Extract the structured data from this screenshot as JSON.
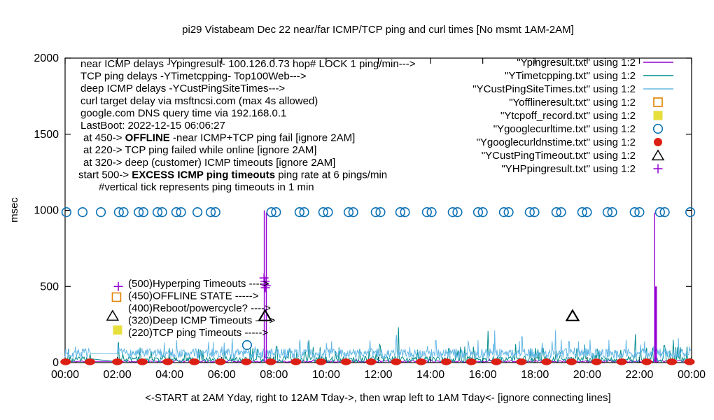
{
  "chart_data": {
    "type": "line",
    "title": "pi29 Vistabeam Dec 22  near/far ICMP/TCP ping and curl times [No msmt 1AM-2AM]",
    "ylabel": "msec",
    "xlabel_caption": "<-START at 2AM Yday, right to 12AM Tday->, then wrap left to 1AM Tday<- [ignore connecting lines]",
    "x_ticks": [
      "00:00",
      "02:00",
      "04:00",
      "06:00",
      "08:00",
      "10:00",
      "12:00",
      "14:00",
      "16:00",
      "18:00",
      "20:00",
      "22:00",
      "00:00"
    ],
    "y_ticks": [
      0,
      500,
      1000,
      1500,
      2000
    ],
    "ylim": [
      0,
      2000
    ],
    "xlim_hours": [
      0,
      24
    ],
    "gap_note": "no measurements between 01:00 and 02:00, straight connecting lines drawn across the gap",
    "grid": false,
    "legend_position": "top-right",
    "info_lines": [
      {
        "indent": 0,
        "parts": [
          {
            "t": "near ICMP delays -Ypingresult- 100.126.0.73 hop# LOCK 1 ping/min--->",
            "b": false
          }
        ]
      },
      {
        "indent": 0,
        "parts": [
          {
            "t": "TCP ping delays -YTimetcpping- Top100Web--->",
            "b": false
          }
        ]
      },
      {
        "indent": 0,
        "parts": [
          {
            "t": "deep ICMP delays -YCustPingSiteTimes--->",
            "b": false
          }
        ]
      },
      {
        "indent": 0,
        "parts": [
          {
            "t": "curl target delay via msftncsi.com (max 4s allowed)",
            "b": false
          }
        ]
      },
      {
        "indent": 0,
        "parts": [
          {
            "t": "google.com DNS query time via 192.168.0.1",
            "b": false
          }
        ]
      },
      {
        "indent": 0,
        "parts": [
          {
            "t": "LastBoot: 2022-12-15 06:06:27",
            "b": false
          }
        ]
      },
      {
        "indent": 1,
        "parts": [
          {
            "t": "at 450->  ",
            "b": false
          },
          {
            "t": "OFFLINE",
            "b": true
          },
          {
            "t": " -near ICMP+TCP ping fail [ignore 2AM]",
            "b": false
          }
        ]
      },
      {
        "indent": 1,
        "parts": [
          {
            "t": "at 220-> TCP ping failed while online [ignore 2AM]",
            "b": false
          }
        ]
      },
      {
        "indent": 1,
        "parts": [
          {
            "t": "at 320-> deep (customer) ICMP timeouts [ignore 2AM]",
            "b": false
          }
        ]
      },
      {
        "indent": 2,
        "parts": [
          {
            "t": "start 500->  ",
            "b": false
          },
          {
            "t": "EXCESS ICMP ping timeouts",
            "b": true
          },
          {
            "t": "  ping rate at 6 pings/min",
            "b": false
          }
        ]
      },
      {
        "indent": 3,
        "parts": [
          {
            "t": "#vertical tick represents ping timeouts in 1 min",
            "b": false
          }
        ]
      }
    ],
    "legend": [
      {
        "label": "\"Ypingresult.txt\" using 1:2",
        "marker": "line",
        "color": "#9400d3"
      },
      {
        "label": "\"YTimetcpping.txt\" using 1:2",
        "marker": "line",
        "color": "#008c8c"
      },
      {
        "label": "\"YCustPingSiteTimes.txt\" using 1:2",
        "marker": "line",
        "color": "#66b8e6"
      },
      {
        "label": "\"Yofflineresult.txt\" using 1:2",
        "marker": "open-square",
        "color": "#e08000"
      },
      {
        "label": "\"Ytcpoff_record.txt\" using 1:2",
        "marker": "filled-square",
        "color": "#e6df3c"
      },
      {
        "label": "\"Ygooglecurltime.txt\" using 1:2",
        "marker": "open-circle",
        "color": "#0e72b4"
      },
      {
        "label": "\"Ygooglecurldnstime.txt\" using 1:2",
        "marker": "filled-circle",
        "color": "#dc1f14"
      },
      {
        "label": "\"YCustPingTimeout.txt\" using 1:2",
        "marker": "triangle",
        "color": "#000000"
      },
      {
        "label": "\"YHPpingresult.txt\" using 1:2",
        "marker": "plus",
        "color": "#9400d3"
      }
    ],
    "event_labels": [
      {
        "label": "(500)Hyperping Timeouts ---->",
        "marker": "plus",
        "color": "#9400d3",
        "marker_hour": 2.04,
        "marker_msec": 500
      },
      {
        "label": "(450)OFFLINE STATE ----->",
        "marker": "open-square",
        "color": "#e08000",
        "marker_hour": 1.97,
        "marker_msec": 430
      },
      {
        "label": "(400)Reboot/powercycle? ---->",
        "marker": null,
        "color": null,
        "marker_hour": null,
        "marker_msec": null
      },
      {
        "label": "(320)Deep ICMP Timeouts ---->",
        "marker": "triangle",
        "color": "#000000",
        "marker_hour": 1.82,
        "marker_msec": 308
      },
      {
        "label": "(220)TCP ping Timeouts ----->",
        "marker": "filled-square",
        "color": "#e6df3c",
        "marker_hour": 2.01,
        "marker_msec": 214
      }
    ],
    "series": {
      "near_icmp_line": {
        "name": "Ypingresult",
        "color": "#9400d3",
        "step": 0.05,
        "seed": 11,
        "base": 3,
        "amp": 10,
        "spike_prob": 0.015,
        "spike_min": 14,
        "spike_max": 26,
        "gap": [
          1,
          2
        ],
        "gap_values": [
          8,
          8
        ],
        "vspikes": [
          [
            7.63,
            1000
          ],
          [
            7.71,
            985
          ],
          [
            22.58,
            985
          ],
          [
            22.62,
            500
          ],
          [
            22.655,
            500
          ]
        ]
      },
      "tcp_ping_line": {
        "name": "YTimetcpping",
        "color": "#008c8c",
        "step": 0.033,
        "seed": 23,
        "base": 2,
        "amp": 38,
        "spike_prob": 0.06,
        "spike_min": 45,
        "spike_max": 110,
        "gap": [
          1,
          2
        ],
        "gap_values": [
          25,
          6
        ],
        "spikes": [
          [
            2.03,
            135
          ],
          [
            3.3,
            70
          ],
          [
            4.0,
            95
          ],
          [
            5.2,
            75
          ],
          [
            6.1,
            88
          ],
          [
            7.1,
            90
          ],
          [
            8.6,
            85
          ],
          [
            9.33,
            148
          ],
          [
            10.5,
            100
          ],
          [
            11.3,
            90
          ],
          [
            12.05,
            120
          ],
          [
            12.78,
            232
          ],
          [
            13.5,
            85
          ],
          [
            14.7,
            92
          ],
          [
            15.3,
            105
          ],
          [
            16.2,
            208
          ],
          [
            17.25,
            122
          ],
          [
            18.3,
            95
          ],
          [
            19.9,
            118
          ],
          [
            20.4,
            90
          ],
          [
            21.85,
            186
          ],
          [
            22.95,
            112
          ],
          [
            23.3,
            150
          ]
        ]
      },
      "deep_icmp_line": {
        "name": "YCustPingSiteTimes",
        "color": "#66b8e6",
        "step": 0.022,
        "seed": 7,
        "base": 30,
        "amp": 62,
        "spike_prob": 0.04,
        "spike_min": 95,
        "spike_max": 150,
        "gap": [
          1,
          2
        ],
        "gap_values": [
          60,
          60
        ],
        "spikes": [
          [
            3.8,
            130
          ],
          [
            6.4,
            160
          ],
          [
            9.0,
            150
          ],
          [
            10.2,
            140
          ],
          [
            12.7,
            182
          ],
          [
            14.2,
            145
          ],
          [
            16.45,
            212
          ],
          [
            17.5,
            170
          ],
          [
            18.78,
            214
          ],
          [
            19.0,
            150
          ],
          [
            20.1,
            150
          ],
          [
            21.5,
            150
          ],
          [
            22.2,
            140
          ],
          [
            23.5,
            160
          ]
        ]
      },
      "curl_time_circles": {
        "name": "Ygooglecurltime",
        "color": "#0e72b4",
        "value_msec": 988,
        "single_hours": [
          0.05,
          0.67,
          1.37,
          5.07,
          23.95
        ],
        "pair_hours": [
          2.06,
          2.82,
          3.54,
          4.26,
          5.58,
          7.9,
          8.98,
          9.89,
          10.86,
          11.9,
          12.84,
          13.86,
          14.85,
          15.82,
          16.81,
          17.8,
          18.82,
          19.81,
          20.78,
          21.82,
          22.79
        ],
        "pair_offset_hours": 0.18,
        "outliers": [
          [
            6.97,
            115
          ]
        ]
      },
      "dns_time_dots": {
        "name": "Ygooglecurldnstime",
        "color": "#dc1f14",
        "value_msec": 5,
        "hours": [
          0.02,
          0.95,
          2.0,
          2.96,
          3.93,
          4.95,
          5.95,
          6.94,
          7.88,
          8.84,
          9.8,
          10.76,
          11.72,
          12.68,
          13.64,
          14.6,
          15.56,
          16.52,
          17.48,
          18.44,
          19.4,
          20.36,
          21.32,
          22.28,
          23.24,
          23.92
        ]
      },
      "cust_ping_timeout_triangles": {
        "name": "YCustPingTimeout",
        "color": "#000000",
        "points": [
          [
            7.66,
            308
          ],
          [
            19.44,
            308
          ]
        ]
      },
      "hyperping_pluses": {
        "name": "YHPpingresult",
        "color": "#9400d3",
        "points": [
          [
            7.62,
            556
          ],
          [
            7.66,
            534
          ],
          [
            7.63,
            515
          ],
          [
            7.67,
            492
          ],
          [
            7.7,
            505
          ]
        ]
      },
      "offline_squares": {
        "name": "Yofflineresult",
        "color": "#e08000",
        "points": []
      },
      "tcpoff_squares": {
        "name": "Ytcpoff_record",
        "color": "#e6df3c",
        "points": []
      }
    }
  }
}
